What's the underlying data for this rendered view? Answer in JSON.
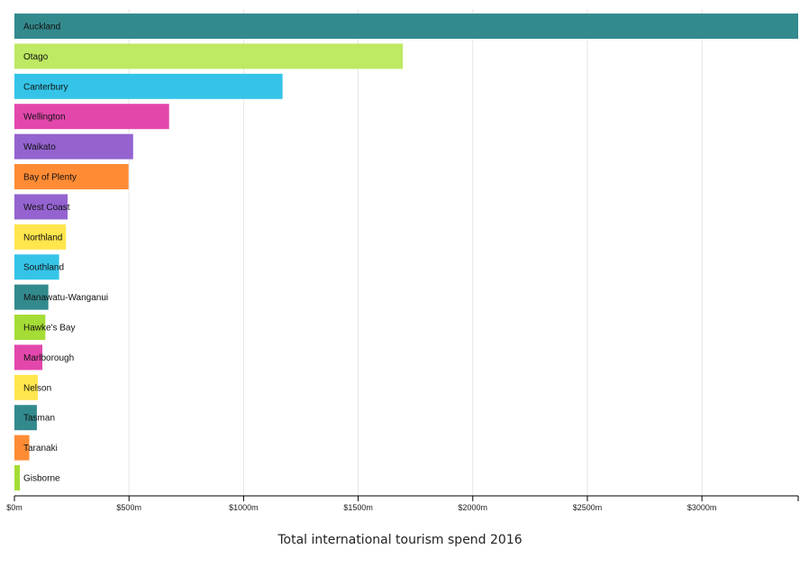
{
  "chart_data": {
    "type": "bar",
    "orientation": "horizontal",
    "title": "",
    "xlabel": "Total international tourism spend 2016",
    "ylabel": "",
    "xlim": [
      0,
      3420
    ],
    "grid": true,
    "categories": [
      "Auckland",
      "Otago",
      "Canterbury",
      "Wellington",
      "Waikato",
      "Bay of Plenty",
      "West Coast",
      "Northland",
      "Southland",
      "Manawatu-Wanganui",
      "Hawke's Bay",
      "Marlborough",
      "Nelson",
      "Tasman",
      "Taranaki",
      "Gisborne"
    ],
    "values": [
      3420,
      1695,
      1170,
      675,
      518,
      498,
      232,
      225,
      195,
      148,
      135,
      122,
      102,
      98,
      65,
      24
    ],
    "colors": [
      "#338a8d",
      "#bde963",
      "#35c4e8",
      "#e347ac",
      "#9463d0",
      "#ff8c35",
      "#9463d0",
      "#ffe64d",
      "#35c4e8",
      "#338a8d",
      "#a5dc35",
      "#e347ac",
      "#ffe64d",
      "#338a8d",
      "#ff8c35",
      "#a5dc35"
    ],
    "x_ticks": [
      0,
      500,
      1000,
      1500,
      2000,
      2500,
      3000
    ],
    "x_tick_labels": [
      "$0m",
      "$500m",
      "$1000m",
      "$1500m",
      "$2000m",
      "$2500m",
      "$3000m"
    ]
  }
}
